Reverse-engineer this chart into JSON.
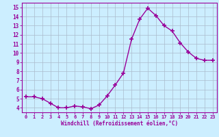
{
  "x": [
    0,
    1,
    2,
    3,
    4,
    5,
    6,
    7,
    8,
    9,
    10,
    11,
    12,
    13,
    14,
    15,
    16,
    17,
    18,
    19,
    20,
    21,
    22,
    23
  ],
  "y": [
    5.2,
    5.2,
    5.0,
    4.5,
    4.0,
    4.0,
    4.2,
    4.1,
    3.9,
    4.3,
    5.3,
    6.5,
    7.8,
    11.5,
    13.7,
    14.9,
    14.1,
    13.0,
    12.4,
    11.1,
    10.1,
    9.4,
    9.2,
    9.2
  ],
  "line_color": "#990099",
  "marker": "+",
  "marker_size": 4,
  "marker_lw": 1.2,
  "bg_color": "#cceeff",
  "grid_color": "#aabbcc",
  "xlabel": "Windchill (Refroidissement éolien,°C)",
  "xlabel_color": "#990099",
  "ylabel_ticks": [
    4,
    5,
    6,
    7,
    8,
    9,
    10,
    11,
    12,
    13,
    14,
    15
  ],
  "xlim": [
    -0.5,
    23.5
  ],
  "ylim": [
    3.5,
    15.5
  ],
  "xtick_labels": [
    "0",
    "1",
    "2",
    "3",
    "4",
    "5",
    "6",
    "7",
    "8",
    "9",
    "10",
    "11",
    "12",
    "13",
    "14",
    "15",
    "16",
    "17",
    "18",
    "19",
    "20",
    "21",
    "22",
    "23"
  ],
  "tick_color": "#990099",
  "axis_color": "#990099",
  "line_style": "-",
  "line_width": 1.0
}
